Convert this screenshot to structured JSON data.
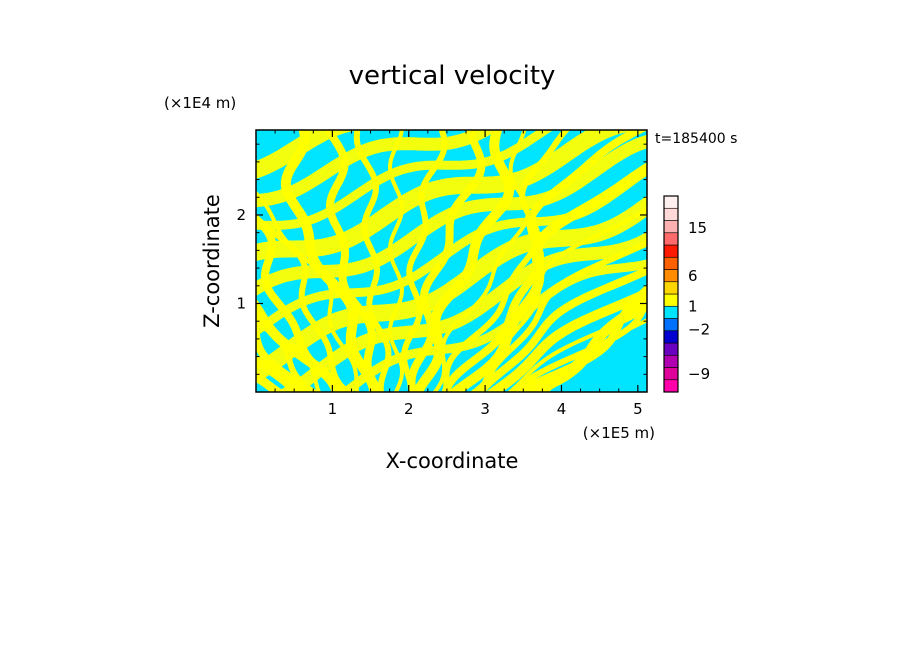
{
  "chart_data": {
    "type": "heatmap",
    "title": "vertical velocity",
    "xlabel": "X-coordinate",
    "ylabel": "Z-coordinate",
    "x_multiplier": "(×1E5 m)",
    "y_multiplier": "(×1E4 m)",
    "time_label": "t=185400 s",
    "xlim": [
      0,
      5.12
    ],
    "ylim": [
      0,
      2.96
    ],
    "x_ticks": [
      1,
      2,
      3,
      4,
      5
    ],
    "y_ticks": [
      1,
      2
    ],
    "grid": false,
    "legend_position": "right",
    "field_colors": {
      "positive": "#ffff00",
      "negative": "#00e5ff"
    },
    "colorbar": {
      "colors": [
        "#ff00aa",
        "#e0009a",
        "#b000b0",
        "#6a00c0",
        "#0000d0",
        "#0070ff",
        "#00e5ff",
        "#ffff00",
        "#ffd700",
        "#ff8c00",
        "#ff6000",
        "#ff1a00",
        "#ff6a6a",
        "#ffb0b0",
        "#ffd8d8",
        "#fff0f0"
      ],
      "tick_labels": [
        {
          "value": -9,
          "label": "−9"
        },
        {
          "value": -2,
          "label": "−2"
        },
        {
          "value": 1,
          "label": "1"
        },
        {
          "value": 6,
          "label": "6"
        },
        {
          "value": 15,
          "label": "15"
        }
      ]
    }
  }
}
